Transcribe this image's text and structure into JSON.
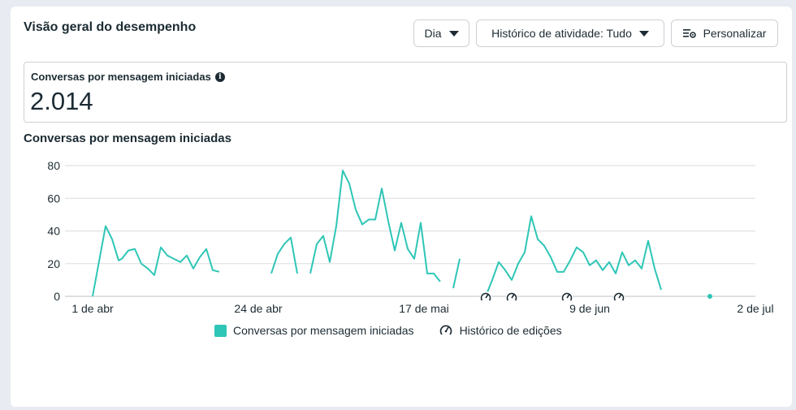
{
  "header": {
    "title": "Visão geral do desempenho",
    "day_button": "Dia",
    "history_button": "Histórico de atividade: Tudo",
    "customize_button": "Personalizar"
  },
  "metric": {
    "label": "Conversas por mensagem iniciadas",
    "value": "2.014"
  },
  "colors": {
    "series": "#2ec6b6",
    "grid": "#dadde1",
    "text": "#1c2b33"
  },
  "chart_data": {
    "type": "line",
    "title": "Conversas por mensagem iniciadas",
    "x_tick_labels": [
      "1 de abr",
      "24 de abr",
      "17 de mai",
      "9 de jun",
      "2 de jul"
    ],
    "y_ticks": [
      0,
      20,
      40,
      60,
      80
    ],
    "ylim": [
      0,
      80
    ],
    "grid": true,
    "legend_position": "bottom",
    "series": [
      {
        "name": "Conversas por mensagem iniciadas",
        "points": [
          [
            1,
            0
          ],
          [
            5,
            43
          ],
          [
            7,
            35
          ],
          [
            9,
            22
          ],
          [
            10,
            23
          ],
          [
            12,
            28
          ],
          [
            14,
            29
          ],
          [
            16,
            20
          ],
          [
            18,
            17
          ],
          [
            20,
            13
          ],
          [
            22,
            30
          ],
          [
            24,
            25
          ],
          [
            26,
            23
          ],
          [
            28,
            21
          ],
          [
            30,
            25
          ],
          [
            32,
            17
          ],
          [
            34,
            24
          ],
          [
            36,
            29
          ],
          [
            38,
            16
          ],
          [
            40,
            15
          ],
          [
            null,
            null
          ],
          [
            56,
            14
          ],
          [
            58,
            26
          ],
          [
            60,
            32
          ],
          [
            62,
            36
          ],
          [
            64,
            14
          ],
          [
            null,
            null
          ],
          [
            68,
            14
          ],
          [
            70,
            32
          ],
          [
            72,
            37
          ],
          [
            74,
            21
          ],
          [
            76,
            43
          ],
          [
            78,
            77
          ],
          [
            80,
            69
          ],
          [
            82,
            53
          ],
          [
            84,
            44
          ],
          [
            86,
            47
          ],
          [
            88,
            47
          ],
          [
            90,
            66
          ],
          [
            92,
            46
          ],
          [
            94,
            28
          ],
          [
            96,
            45
          ],
          [
            98,
            29
          ],
          [
            100,
            23
          ],
          [
            102,
            45
          ],
          [
            104,
            14
          ],
          [
            106,
            14
          ],
          [
            108,
            9
          ],
          [
            null,
            null
          ],
          [
            112,
            5
          ],
          [
            114,
            23
          ],
          [
            null,
            null
          ],
          [
            122,
            0
          ],
          [
            124,
            10
          ],
          [
            126,
            21
          ],
          [
            128,
            16
          ],
          [
            130,
            10
          ],
          [
            132,
            20
          ],
          [
            134,
            27
          ],
          [
            136,
            49
          ],
          [
            138,
            35
          ],
          [
            140,
            31
          ],
          [
            142,
            24
          ],
          [
            144,
            15
          ],
          [
            146,
            15
          ],
          [
            148,
            22
          ],
          [
            150,
            30
          ],
          [
            152,
            27
          ],
          [
            154,
            19
          ],
          [
            156,
            22
          ],
          [
            158,
            16
          ],
          [
            160,
            21
          ],
          [
            162,
            14
          ],
          [
            164,
            27
          ],
          [
            166,
            19
          ],
          [
            168,
            22
          ],
          [
            170,
            17
          ],
          [
            172,
            34
          ],
          [
            174,
            17
          ],
          [
            176,
            4
          ],
          [
            null,
            null
          ],
          [
            191,
            0
          ]
        ]
      }
    ],
    "annotations": {
      "name": "Histórico de edições",
      "x": [
        122,
        130,
        147,
        163
      ]
    }
  },
  "legend": {
    "series_label": "Conversas por mensagem iniciadas",
    "edits_label": "Histórico de edições"
  }
}
